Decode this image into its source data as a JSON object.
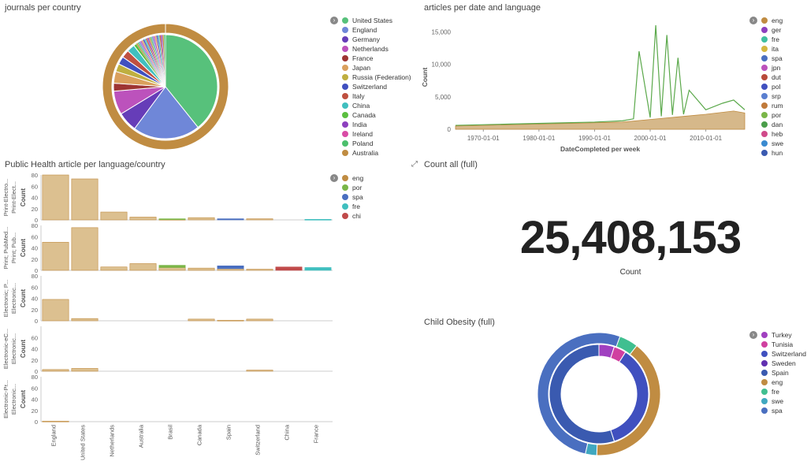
{
  "panels": {
    "journals": {
      "title": "journals per country"
    },
    "articles": {
      "title": "articles per date and language"
    },
    "public_health": {
      "title": "Public Health article per language/country"
    },
    "count_all": {
      "title": "Count all (full)",
      "value": "25,408,153",
      "label": "Count"
    },
    "child_obesity": {
      "title": "Child Obesity (full)"
    }
  },
  "legend_toggle_icon": "chevron-right-icon",
  "legends": {
    "journals": [
      {
        "label": "United States",
        "color": "#57c17b"
      },
      {
        "label": "England",
        "color": "#6f87d8"
      },
      {
        "label": "Germany",
        "color": "#663db8"
      },
      {
        "label": "Netherlands",
        "color": "#bc52bc"
      },
      {
        "label": "France",
        "color": "#9e3533"
      },
      {
        "label": "Japan",
        "color": "#daa05d"
      },
      {
        "label": "Russia (Federation)",
        "color": "#bfaf40"
      },
      {
        "label": "Switzerland",
        "color": "#4050bf"
      },
      {
        "label": "Italy",
        "color": "#bf5040"
      },
      {
        "label": "China",
        "color": "#40bfbf"
      },
      {
        "label": "Canada",
        "color": "#5bbf40"
      },
      {
        "label": "India",
        "color": "#8d40bf"
      },
      {
        "label": "Ireland",
        "color": "#d94ca6"
      },
      {
        "label": "Poland",
        "color": "#4cbf6d"
      },
      {
        "label": "Australia",
        "color": "#c08c42"
      }
    ],
    "articles": [
      {
        "label": "eng",
        "color": "#c08c42"
      },
      {
        "label": "ger",
        "color": "#8d40bf"
      },
      {
        "label": "fre",
        "color": "#40bfa0"
      },
      {
        "label": "ita",
        "color": "#d4b740"
      },
      {
        "label": "spa",
        "color": "#4a6fc0"
      },
      {
        "label": "jpn",
        "color": "#bc52bc"
      },
      {
        "label": "dut",
        "color": "#b84a3a"
      },
      {
        "label": "pol",
        "color": "#4050bf"
      },
      {
        "label": "srp",
        "color": "#5a7fd0"
      },
      {
        "label": "rum",
        "color": "#c07a3a"
      },
      {
        "label": "por",
        "color": "#7ab648"
      },
      {
        "label": "dan",
        "color": "#4a9e4a"
      },
      {
        "label": "heb",
        "color": "#d04a8a"
      },
      {
        "label": "swe",
        "color": "#3a8ad0"
      },
      {
        "label": "hun",
        "color": "#3a5ab0"
      }
    ],
    "public_health": [
      {
        "label": "eng",
        "color": "#c08c42"
      },
      {
        "label": "por",
        "color": "#7ab648"
      },
      {
        "label": "spa",
        "color": "#4a6fc0"
      },
      {
        "label": "fre",
        "color": "#40bfbf"
      },
      {
        "label": "chi",
        "color": "#c04a4a"
      }
    ],
    "child_obesity": [
      {
        "label": "Turkey",
        "color": "#a040c0"
      },
      {
        "label": "Tunisia",
        "color": "#d040a0"
      },
      {
        "label": "Switzerland",
        "color": "#4050bf"
      },
      {
        "label": "Sweden",
        "color": "#6030b0"
      },
      {
        "label": "Spain",
        "color": "#3a5ab0"
      },
      {
        "label": "eng",
        "color": "#c08c42"
      },
      {
        "label": "fre",
        "color": "#40bf90"
      },
      {
        "label": "swe",
        "color": "#40a8c0"
      },
      {
        "label": "spa",
        "color": "#4a6fc0"
      }
    ]
  },
  "chart_data": [
    {
      "type": "pie",
      "name": "journals per country",
      "inner_categories": [
        "United States",
        "England",
        "Germany",
        "Netherlands",
        "France",
        "Japan",
        "Russia (Federation)",
        "Switzerland",
        "Italy",
        "China",
        "Canada",
        "India",
        "Ireland",
        "Poland",
        "Australia"
      ],
      "inner_values": [
        32,
        17,
        5,
        6,
        2,
        3,
        2,
        2,
        2,
        2,
        2,
        2,
        1.5,
        1.5,
        1.5
      ],
      "outer_ring": [
        {
          "label": "eng",
          "value": 100
        }
      ]
    },
    {
      "type": "area",
      "name": "articles per date and language",
      "xlabel": "DateCompleted per week",
      "ylabel": "Count",
      "x_ticks": [
        "1970-01-01",
        "1980-01-01",
        "1990-01-01",
        "2000-01-01",
        "2010-01-01"
      ],
      "y_ticks": [
        "0",
        "5,000",
        "10,000",
        "15,000"
      ],
      "ylim": [
        0,
        16000
      ],
      "x_range": [
        1965,
        2017
      ],
      "series": [
        {
          "name": "eng",
          "x": [
            1965,
            1975,
            1985,
            1990,
            1995,
            2000,
            2005,
            2010,
            2015,
            2017
          ],
          "values": [
            500,
            700,
            900,
            1000,
            1100,
            1500,
            1900,
            2300,
            2800,
            2500
          ]
        },
        {
          "name": "por",
          "x": [
            1965,
            1975,
            1985,
            1990,
            1995,
            1997,
            1998,
            2000,
            2001,
            2002,
            2003,
            2004,
            2005,
            2006,
            2007,
            2010,
            2013,
            2015,
            2017
          ],
          "values": [
            600,
            800,
            1000,
            1100,
            1300,
            1600,
            12000,
            1800,
            16000,
            2000,
            14500,
            2200,
            11000,
            2300,
            6000,
            3000,
            4000,
            4500,
            3000
          ]
        }
      ]
    },
    {
      "type": "bar",
      "name": "Public Health article per language/country",
      "categories": [
        "England",
        "United States",
        "Netherlands",
        "Australia",
        "Brasil",
        "Canada",
        "Spain",
        "Switzerland",
        "China",
        "France"
      ],
      "ylabel": "Count",
      "ylim": [
        0,
        80
      ],
      "y_ticks": [
        "0",
        "20",
        "40",
        "60",
        "80"
      ],
      "rows": [
        {
          "labels": [
            "Print-Electro...",
            "Print-Elect..."
          ],
          "values": {
            "eng": [
              80,
              73,
              14,
              5,
              1,
              4,
              0,
              2,
              0,
              0
            ],
            "por": [
              0,
              0,
              0,
              0,
              1,
              0,
              0,
              0,
              0,
              0
            ],
            "spa": [
              0,
              0,
              0,
              0,
              0,
              0,
              2,
              0,
              0,
              0
            ],
            "fre": [
              0,
              0,
              0,
              0,
              0,
              0,
              0,
              0,
              0,
              1
            ],
            "chi": [
              0,
              0,
              0,
              0,
              0,
              0,
              0,
              0,
              0,
              0
            ]
          }
        },
        {
          "labels": [
            "Print; PubMed...",
            "Print; Pub..."
          ],
          "values": {
            "eng": [
              50,
              76,
              6,
              12,
              5,
              4,
              3,
              2,
              0,
              0
            ],
            "por": [
              0,
              0,
              0,
              0,
              4,
              0,
              0,
              0,
              0,
              0
            ],
            "spa": [
              0,
              0,
              0,
              0,
              0,
              0,
              5,
              0,
              0,
              0
            ],
            "fre": [
              0,
              0,
              0,
              0,
              0,
              0,
              0,
              0,
              0,
              5
            ],
            "chi": [
              0,
              0,
              0,
              0,
              0,
              0,
              0,
              0,
              6,
              0
            ]
          }
        },
        {
          "labels": [
            "Electronic; P...",
            "Electronic..."
          ],
          "values": {
            "eng": [
              38,
              4,
              0,
              0,
              0,
              3,
              1,
              3,
              0,
              0
            ],
            "por": [
              0,
              0,
              0,
              0,
              0,
              0,
              0,
              0,
              0,
              0
            ],
            "spa": [
              0,
              0,
              0,
              0,
              0,
              0,
              0,
              0,
              0,
              0
            ],
            "fre": [
              0,
              0,
              0,
              0,
              0,
              0,
              0,
              0,
              0,
              0
            ],
            "chi": [
              0,
              0,
              0,
              0,
              0,
              0,
              0,
              0,
              0,
              0
            ]
          }
        },
        {
          "labels": [
            "Electronic-eC...",
            "Electronic..."
          ],
          "values": {
            "eng": [
              3,
              5,
              0,
              0,
              0,
              0,
              0,
              2,
              0,
              0
            ],
            "por": [
              0,
              0,
              0,
              0,
              0,
              0,
              0,
              0,
              0,
              0
            ],
            "spa": [
              0,
              0,
              0,
              0,
              0,
              0,
              0,
              0,
              0,
              0
            ],
            "fre": [
              0,
              0,
              0,
              0,
              0,
              0,
              0,
              0,
              0,
              0
            ],
            "chi": [
              0,
              0,
              0,
              0,
              0,
              0,
              0,
              0,
              0,
              0
            ]
          }
        },
        {
          "labels": [
            "Electronic-Pr...",
            "Electronic..."
          ],
          "values": {
            "eng": [
              1,
              0,
              0,
              0,
              0,
              0,
              0,
              0,
              0,
              0
            ],
            "por": [
              0,
              0,
              0,
              0,
              0,
              0,
              0,
              0,
              0,
              0
            ],
            "spa": [
              0,
              0,
              0,
              0,
              0,
              0,
              0,
              0,
              0,
              0
            ],
            "fre": [
              0,
              0,
              0,
              0,
              0,
              0,
              0,
              0,
              0,
              0
            ],
            "chi": [
              0,
              0,
              0,
              0,
              0,
              0,
              0,
              0,
              0,
              0
            ]
          }
        }
      ],
      "row_y_ticks": [
        [
          "0",
          "20",
          "40",
          "60",
          "80"
        ],
        [
          "0",
          "20",
          "40",
          "60",
          "80"
        ],
        [
          "0",
          "20",
          "40",
          "60",
          "80"
        ],
        [
          "0",
          "20",
          "40",
          "60"
        ],
        [
          "0",
          "20",
          "40",
          "60",
          "80"
        ]
      ]
    },
    {
      "type": "pie",
      "name": "Child Obesity (full)",
      "inner_categories": [
        "Turkey",
        "Tunisia",
        "Switzerland",
        "Spain"
      ],
      "inner_values": [
        5,
        4,
        36,
        55
      ],
      "outer_categories": [
        "eng",
        "fre",
        "spa",
        "swe"
      ],
      "outer_values": [
        40,
        5,
        52,
        3
      ]
    }
  ]
}
